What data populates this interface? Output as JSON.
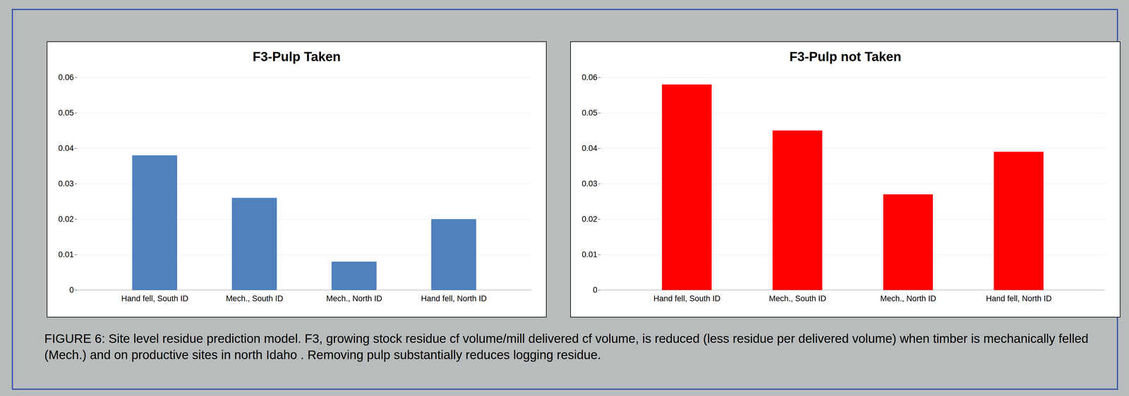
{
  "chart_data": [
    {
      "type": "bar",
      "title": "F3-Pulp Taken",
      "categories": [
        "Hand fell, South ID",
        "Mech., South ID",
        "Mech., North ID",
        "Hand fell, North ID"
      ],
      "values": [
        0.038,
        0.026,
        0.008,
        0.02
      ],
      "color": "#4f81bd",
      "ylim": [
        0,
        0.06
      ],
      "yticks": [
        0,
        0.01,
        0.02,
        0.03,
        0.04,
        0.05,
        0.06
      ],
      "grid": true
    },
    {
      "type": "bar",
      "title": "F3-Pulp not Taken",
      "categories": [
        "Hand fell, South ID",
        "Mech., South ID",
        "Mech., North ID",
        "Hand fell, North ID"
      ],
      "values": [
        0.058,
        0.045,
        0.027,
        0.039
      ],
      "color": "#ff0000",
      "ylim": [
        0,
        0.06
      ],
      "yticks": [
        0,
        0.01,
        0.02,
        0.03,
        0.04,
        0.05,
        0.06
      ],
      "grid": true
    }
  ],
  "caption": "FIGURE 6: Site level residue prediction model.  F3, growing stock residue cf volume/mill delivered cf volume, is reduced (less residue per delivered volume) when timber is mechanically felled (Mech.) and on productive sites in north Idaho .  Removing pulp substantially reduces logging residue."
}
